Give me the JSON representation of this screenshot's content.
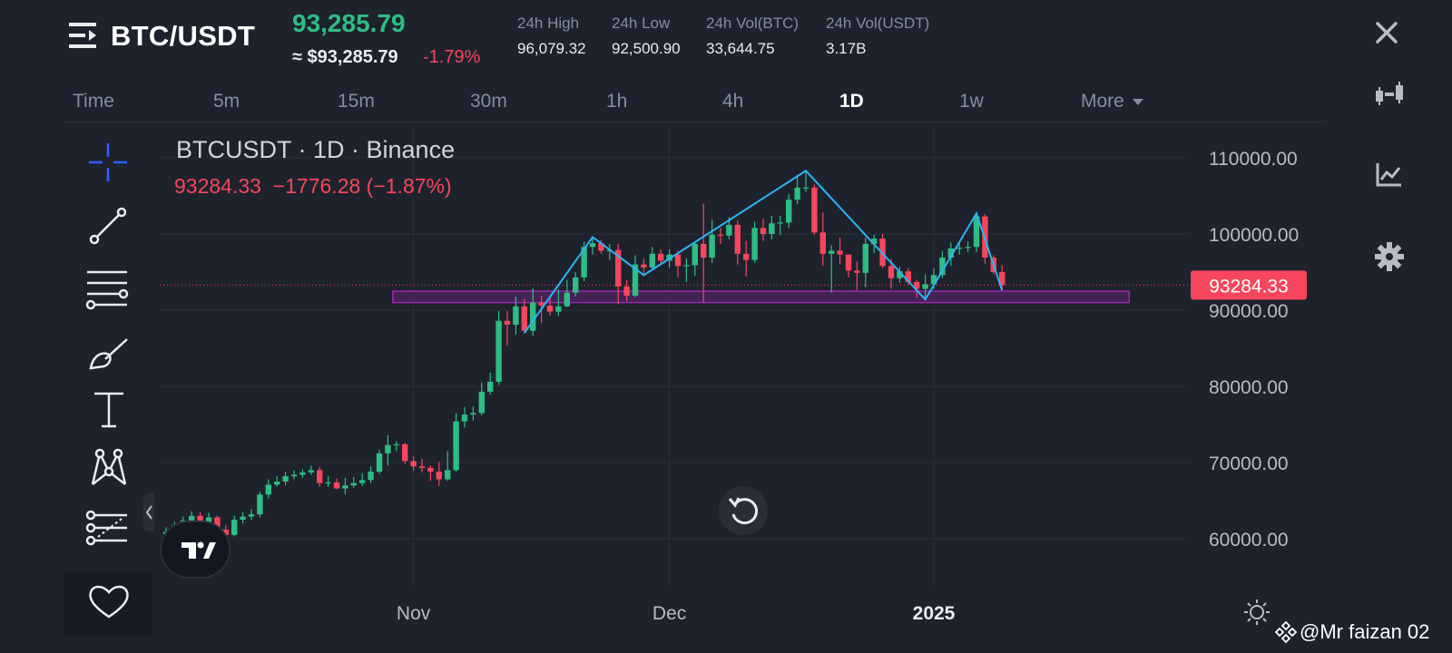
{
  "header": {
    "pair": "BTC/USDT",
    "last_price": "93,285.79",
    "price_approx": "≈ $93,285.79",
    "price_change": "-1.79%",
    "stats": [
      {
        "label": "24h High",
        "value": "96,079.32"
      },
      {
        "label": "24h Low",
        "value": "92,500.90"
      },
      {
        "label": "24h Vol(BTC)",
        "value": "33,644.75"
      },
      {
        "label": "24h Vol(USDT)",
        "value": "3.17B"
      }
    ]
  },
  "timeframes": {
    "items": [
      "Time",
      "5m",
      "15m",
      "30m",
      "1h",
      "4h",
      "1D",
      "1w",
      "More"
    ],
    "active": "1D"
  },
  "chart": {
    "title": "BTCUSDT · 1D · Binance",
    "ohlc": "93284.33  −1776.28 (−1.87%)",
    "price_tag": "93284.33",
    "colors": {
      "up": "#2ebd85",
      "down": "#f6465d",
      "zigzag": "#29b6f6",
      "zone": "#9c27b0"
    },
    "zone": {
      "from": "Oct 30",
      "to": "Jan 24",
      "low": 91000,
      "high": 92500
    }
  },
  "chart_data": {
    "type": "candlestick",
    "y_ticks": [
      "110000.00",
      "100000.00",
      "90000.00",
      "80000.00",
      "70000.00",
      "60000.00"
    ],
    "x_ticks": [
      "Nov",
      "Dec",
      "2025"
    ],
    "ylim": [
      54000,
      112000
    ],
    "x": [
      "Oct 03",
      "Oct 04",
      "Oct 05",
      "Oct 06",
      "Oct 07",
      "Oct 08",
      "Oct 09",
      "Oct 10",
      "Oct 11",
      "Oct 12",
      "Oct 13",
      "Oct 14",
      "Oct 15",
      "Oct 16",
      "Oct 17",
      "Oct 18",
      "Oct 19",
      "Oct 20",
      "Oct 21",
      "Oct 22",
      "Oct 23",
      "Oct 24",
      "Oct 25",
      "Oct 26",
      "Oct 27",
      "Oct 28",
      "Oct 29",
      "Oct 30",
      "Oct 31",
      "Nov 01",
      "Nov 02",
      "Nov 03",
      "Nov 04",
      "Nov 05",
      "Nov 06",
      "Nov 07",
      "Nov 08",
      "Nov 09",
      "Nov 10",
      "Nov 11",
      "Nov 12",
      "Nov 13",
      "Nov 14",
      "Nov 15",
      "Nov 16",
      "Nov 17",
      "Nov 18",
      "Nov 19",
      "Nov 20",
      "Nov 21",
      "Nov 22",
      "Nov 23",
      "Nov 24",
      "Nov 25",
      "Nov 26",
      "Nov 27",
      "Nov 28",
      "Nov 29",
      "Nov 30",
      "Dec 01",
      "Dec 02",
      "Dec 03",
      "Dec 04",
      "Dec 05",
      "Dec 06",
      "Dec 07",
      "Dec 08",
      "Dec 09",
      "Dec 10",
      "Dec 11",
      "Dec 12",
      "Dec 13",
      "Dec 14",
      "Dec 15",
      "Dec 16",
      "Dec 17",
      "Dec 18",
      "Dec 19",
      "Dec 20",
      "Dec 21",
      "Dec 22",
      "Dec 23",
      "Dec 24",
      "Dec 25",
      "Dec 26",
      "Dec 27",
      "Dec 28",
      "Dec 29",
      "Dec 30",
      "Dec 31",
      "Jan 01",
      "Jan 02",
      "Jan 03",
      "Jan 04",
      "Jan 05",
      "Jan 06",
      "Jan 07",
      "Jan 08",
      "Jan 09"
    ],
    "open": [
      60600,
      60900,
      61800,
      62400,
      63000,
      62200,
      62800,
      61200,
      60500,
      62500,
      62900,
      63200,
      65800,
      67100,
      67500,
      68200,
      68400,
      68700,
      69000,
      67300,
      67400,
      66600,
      67000,
      67300,
      67700,
      68800,
      71200,
      72300,
      72400,
      70200,
      69500,
      69300,
      68800,
      67800,
      69000,
      75400,
      76300,
      76500,
      79300,
      80600,
      88600,
      88100,
      90500,
      87300,
      91000,
      90600,
      89800,
      90500,
      92300,
      94300,
      98300,
      98800,
      97800,
      97900,
      93100,
      91900,
      96000,
      95600,
      97400,
      96500,
      97300,
      95800,
      95900,
      98700,
      96900,
      99900,
      99800,
      101200,
      97400,
      96600,
      100800,
      100000,
      101400,
      101500,
      104500,
      106100,
      106100,
      100200,
      97400,
      97800,
      97300,
      95200,
      94900,
      98700,
      99400,
      95800,
      94200,
      95100,
      93700,
      92800,
      93400,
      94600,
      96900,
      98100,
      98200,
      98300,
      102300,
      96900,
      95000
    ],
    "close": [
      60900,
      61800,
      62400,
      63000,
      62200,
      62800,
      61200,
      60500,
      62500,
      62900,
      63200,
      65800,
      67100,
      67500,
      68200,
      68400,
      68700,
      69000,
      67300,
      67400,
      66600,
      67000,
      67300,
      67700,
      68800,
      71200,
      72300,
      72400,
      70200,
      69500,
      69300,
      68800,
      67800,
      69000,
      75400,
      76300,
      76500,
      79300,
      80600,
      88600,
      88100,
      90500,
      87300,
      91000,
      90600,
      89800,
      90500,
      92300,
      94300,
      98300,
      98800,
      97800,
      97900,
      93100,
      91900,
      96000,
      95600,
      97400,
      96500,
      97300,
      95800,
      95900,
      98700,
      96900,
      99900,
      99800,
      101200,
      97400,
      96600,
      100800,
      100000,
      101400,
      101500,
      104500,
      106100,
      106100,
      100200,
      97400,
      97800,
      97300,
      95200,
      94900,
      98700,
      99400,
      95800,
      94200,
      95100,
      93700,
      92800,
      93400,
      94600,
      96900,
      98100,
      98200,
      98300,
      102300,
      96900,
      95000,
      93284
    ],
    "high": [
      61500,
      62200,
      62900,
      63600,
      63500,
      63400,
      63000,
      61800,
      63000,
      63500,
      63900,
      66200,
      67800,
      68200,
      68800,
      69000,
      69100,
      69600,
      69400,
      68200,
      67900,
      68000,
      68100,
      68600,
      69500,
      71700,
      73600,
      72800,
      72600,
      70800,
      70500,
      69600,
      70100,
      71500,
      76500,
      77300,
      77400,
      80500,
      81800,
      89900,
      89900,
      91800,
      91500,
      92900,
      91900,
      91600,
      92700,
      94000,
      95000,
      99000,
      99600,
      99200,
      98700,
      98700,
      94000,
      97200,
      96800,
      98300,
      98000,
      98000,
      97800,
      96800,
      99000,
      104000,
      101900,
      100800,
      102200,
      101800,
      99100,
      101600,
      102000,
      102400,
      102400,
      105200,
      107800,
      108300,
      106500,
      102800,
      98500,
      99500,
      97300,
      96400,
      99500,
      99900,
      100000,
      96700,
      95700,
      95500,
      94000,
      94700,
      95500,
      97800,
      98900,
      98800,
      99000,
      102700,
      102600,
      97200,
      95900
    ],
    "low": [
      59800,
      60300,
      61200,
      61900,
      61800,
      61800,
      60800,
      60000,
      60300,
      62000,
      62500,
      62800,
      65300,
      66800,
      67000,
      67800,
      68000,
      68400,
      66800,
      66800,
      66500,
      65800,
      66700,
      66900,
      67300,
      68500,
      69600,
      71500,
      69800,
      68900,
      68700,
      67600,
      66900,
      67600,
      68800,
      74600,
      75500,
      76200,
      78900,
      80200,
      85300,
      86800,
      87000,
      86600,
      88300,
      89300,
      89200,
      90400,
      91800,
      93800,
      97300,
      97400,
      96600,
      90800,
      91200,
      91700,
      94600,
      95200,
      95900,
      95600,
      94300,
      93700,
      94500,
      91000,
      96200,
      98700,
      99300,
      96000,
      94400,
      96200,
      99100,
      99300,
      99900,
      100800,
      103900,
      105500,
      99900,
      95800,
      92300,
      96000,
      94300,
      92600,
      93000,
      97500,
      95500,
      92800,
      93600,
      93300,
      91600,
      91400,
      92800,
      94200,
      95800,
      97300,
      97600,
      97600,
      96100,
      94700,
      92600
    ]
  }
}
